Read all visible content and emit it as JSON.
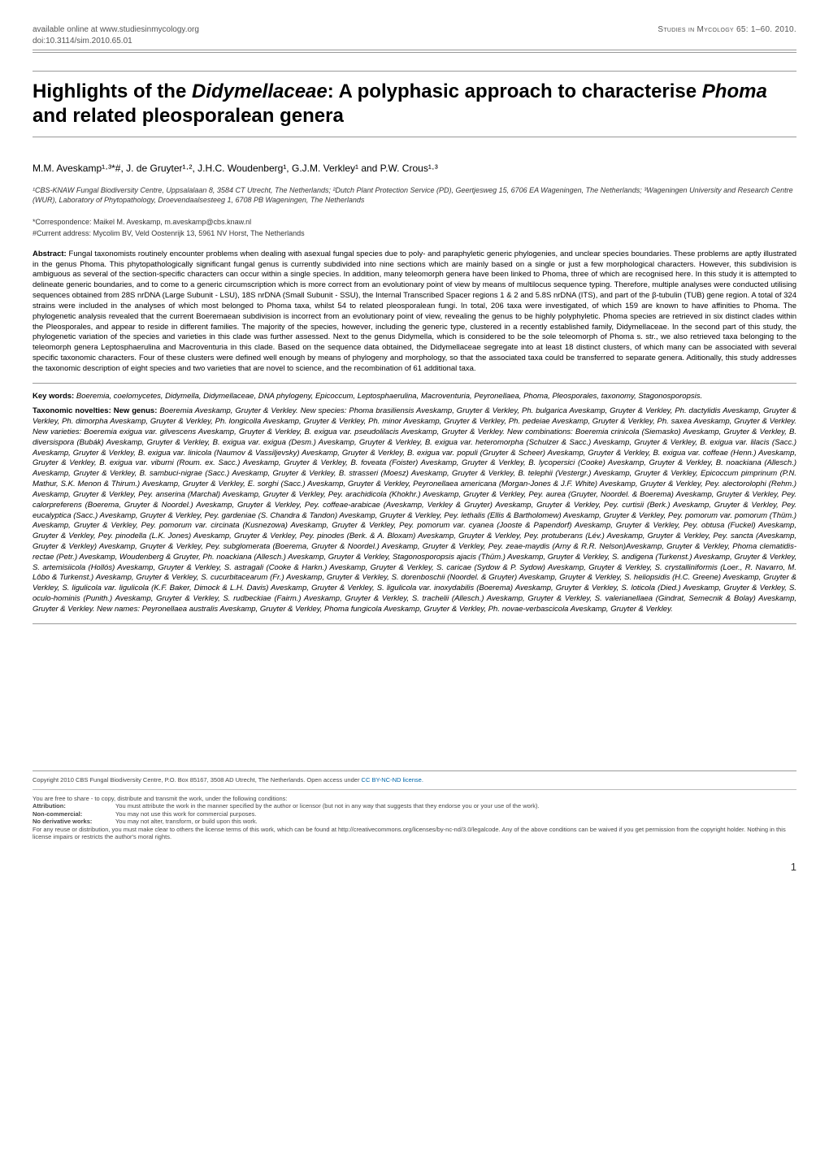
{
  "header": {
    "website": "available online at www.studiesinmycology.org",
    "doi": "doi:10.3114/sim.2010.65.01",
    "journal": "Studies in Mycology 65: 1–60. 2010."
  },
  "title": "Highlights of the Didymellaceae: A polyphasic approach to characterise Phoma and related pleosporalean genera",
  "authors": "M.M. Aveskamp¹·³*#, J. de Gruyter¹·², J.H.C. Woudenberg¹, G.J.M. Verkley¹ and P.W. Crous¹·³",
  "affiliations": "¹CBS-KNAW Fungal Biodiversity Centre, Uppsalalaan 8, 3584 CT Utrecht, The Netherlands; ²Dutch Plant Protection Service (PD), Geertjesweg 15, 6706 EA Wageningen, The Netherlands; ³Wageningen University and Research Centre (WUR), Laboratory of Phytopathology, Droevendaalsesteeg 1, 6708 PB Wageningen, The Netherlands",
  "correspondence": "*Correspondence: Maikel M. Aveskamp, m.aveskamp@cbs.knaw.nl",
  "current_address": "#Current address: Mycolim BV, Veld Oostenrijk 13, 5961 NV Horst, The Netherlands",
  "abstract_label": "Abstract:",
  "abstract": "Fungal taxonomists routinely encounter problems when dealing with asexual fungal species due to poly- and paraphyletic generic phylogenies, and unclear species boundaries. These problems are aptly illustrated in the genus Phoma. This phytopathologically significant fungal genus is currently subdivided into nine sections which are mainly based on a single or just a few morphological characters. However, this subdivision is ambiguous as several of the section-specific characters can occur within a single species. In addition, many teleomorph genera have been linked to Phoma, three of which are recognised here. In this study it is attempted to delineate generic boundaries, and to come to a generic circumscription which is more correct from an evolutionary point of view by means of multilocus sequence typing. Therefore, multiple analyses were conducted utilising sequences obtained from 28S nrDNA (Large Subunit - LSU), 18S nrDNA (Small Subunit - SSU), the Internal Transcribed Spacer regions 1 & 2 and 5.8S nrDNA (ITS), and part of the β-tubulin (TUB) gene region. A total of 324 strains were included in the analyses of which most belonged to Phoma taxa, whilst 54 to related pleosporalean fungi. In total, 206 taxa were investigated, of which 159 are known to have affinities to Phoma. The phylogenetic analysis revealed that the current Boeremaean subdivision is incorrect from an evolutionary point of view, revealing the genus to be highly polyphyletic. Phoma species are retrieved in six distinct clades within the Pleosporales, and appear to reside in different families. The majority of the species, however, including the generic type, clustered in a recently established family, Didymellaceae. In the second part of this study, the phylogenetic variation of the species and varieties in this clade was further assessed. Next to the genus Didymella, which is considered to be the sole teleomorph of Phoma s. str., we also retrieved taxa belonging to the teleomorph genera Leptosphaerulina and Macroventuria in this clade. Based on the sequence data obtained, the Didymellaceae segregate into at least 18 distinct clusters, of which many can be associated with several specific taxonomic characters. Four of these clusters were defined well enough by means of phylogeny and morphology, so that the associated taxa could be transferred to separate genera. Aditionally, this study addresses the taxonomic description of eight species and two varieties that are novel to science, and the recombination of 61 additional taxa.",
  "keywords_label": "Key words:",
  "keywords": "Boeremia, coelomycetes, Didymella, Didymellaceae, DNA phylogeny, Epicoccum, Leptosphaerulina, Macroventuria, Peyronellaea, Phoma, Pleosporales, taxonomy, Stagonosporopsis.",
  "novelties_label": "Taxonomic novelties: New genus:",
  "novelties": "Boeremia Aveskamp, Gruyter & Verkley. New species: Phoma brasiliensis Aveskamp, Gruyter & Verkley, Ph. bulgarica Aveskamp, Gruyter & Verkley, Ph. dactylidis Aveskamp, Gruyter & Verkley, Ph. dimorpha Aveskamp, Gruyter & Verkley, Ph. longicolla Aveskamp, Gruyter & Verkley, Ph. minor Aveskamp, Gruyter & Verkley, Ph. pedeiae Aveskamp, Gruyter & Verkley, Ph. saxea Aveskamp, Gruyter & Verkley. New varieties: Boeremia exigua var. gilvescens Aveskamp, Gruyter & Verkley, B. exigua var. pseudolilacis Aveskamp, Gruyter & Verkley. New combinations: Boeremia crinicola (Siemasko) Aveskamp, Gruyter & Verkley, B. diversispora (Bubák) Aveskamp, Gruyter & Verkley, B. exigua var. exigua (Desm.) Aveskamp, Gruyter & Verkley, B. exigua var. heteromorpha (Schulzer & Sacc.) Aveskamp, Gruyter & Verkley, B. exigua var. lilacis (Sacc.) Aveskamp, Gruyter & Verkley, B. exigua var. linicola (Naumov & Vassiljevsky) Aveskamp, Gruyter & Verkley, B. exigua var. populi (Gruyter & Scheer) Aveskamp, Gruyter & Verkley, B. exigua var. coffeae (Henn.) Aveskamp, Gruyter & Verkley, B. exigua var. viburni (Roum. ex. Sacc.) Aveskamp, Gruyter & Verkley, B. foveata (Foister) Aveskamp, Gruyter & Verkley, B. lycopersici (Cooke) Aveskamp, Gruyter & Verkley, B. noackiana (Allesch.) Aveskamp, Gruyter & Verkley, B. sambuci-nigrae (Sacc.) Aveskamp, Gruyter & Verkley, B. strasseri (Moesz) Aveskamp, Gruyter & Verkley, B. telephii (Vestergr.) Aveskamp, Gruyter & Verkley, Epicoccum pimprinum (P.N. Mathur, S.K. Menon & Thirum.) Aveskamp, Gruyter & Verkley, E. sorghi (Sacc.) Aveskamp, Gruyter & Verkley, Peyronellaea americana (Morgan-Jones & J.F. White) Aveskamp, Gruyter & Verkley, Pey. alectorolophi (Rehm.) Aveskamp, Gruyter & Verkley, Pey. anserina (Marchal) Aveskamp, Gruyter & Verkley, Pey. arachidicola (Khokhr.) Aveskamp, Gruyter & Verkley, Pey. aurea (Gruyter, Noordel. & Boerema) Aveskamp, Gruyter & Verkley, Pey. calorpreferens (Boerema, Gruyter & Noordel.) Aveskamp, Gruyter & Verkley, Pey. coffeae-arabicae (Aveskamp, Verkley & Gruyter) Aveskamp, Gruyter & Verkley, Pey. curtisii (Berk.) Aveskamp, Gruyter & Verkley, Pey. eucalyptica (Sacc.) Aveskamp, Gruyter & Verkley, Pey. gardeniae (S. Chandra & Tandon) Aveskamp, Gruyter & Verkley, Pey. lethalis (Ellis & Bartholomew) Aveskamp, Gruyter & Verkley, Pey. pomorum var. pomorum (Thüm.) Aveskamp, Gruyter & Verkley, Pey. pomorum var. circinata (Kusnezowa) Aveskamp, Gruyter & Verkley, Pey. pomorum var. cyanea (Jooste & Papendorf) Aveskamp, Gruyter & Verkley, Pey. obtusa (Fuckel) Aveskamp, Gruyter & Verkley, Pey. pinodella (L.K. Jones) Aveskamp, Gruyter & Verkley, Pey. pinodes (Berk. & A. Bloxam) Aveskamp, Gruyter & Verkley, Pey. protuberans (Lév.) Aveskamp, Gruyter & Verkley, Pey. sancta (Aveskamp, Gruyter & Verkley) Aveskamp, Gruyter & Verkley, Pey. subglomerata (Boerema, Gruyter & Noordel.) Aveskamp, Gruyter & Verkley, Pey. zeae-maydis (Arny & R.R. Nelson)Aveskamp, Gruyter & Verkley, Phoma clematidis-rectae (Petr.) Aveskamp, Woudenberg & Gruyter, Ph. noackiana (Allesch.) Aveskamp, Gruyter & Verkley, Stagonosporopsis ajacis (Thüm.) Aveskamp, Gruyter & Verkley, S. andigena (Turkenst.) Aveskamp, Gruyter & Verkley, S. artemisiicola (Hollós) Aveskamp, Gruyter & Verkley, S. astragali (Cooke & Harkn.) Aveskamp, Gruyter & Verkley, S. caricae (Sydow & P. Sydow) Aveskamp, Gruyter & Verkley, S. crystalliniformis (Loer., R. Navarro, M. Lôbo & Turkenst.) Aveskamp, Gruyter & Verkley, S. cucurbitacearum (Fr.) Aveskamp, Gruyter & Verkley, S. dorenboschii (Noordel. & Gruyter) Aveskamp, Gruyter & Verkley, S. heliopsidis (H.C. Greene) Aveskamp, Gruyter & Verkley, S. ligulicola var. ligulicola (K.F. Baker, Dimock & L.H. Davis) Aveskamp, Gruyter & Verkley, S. ligulicola var. inoxydabilis (Boerema) Aveskamp, Gruyter & Verkley, S. loticola (Died.) Aveskamp, Gruyter & Verkley, S. oculo-hominis (Punith.) Aveskamp, Gruyter & Verkley, S. rudbeckiae (Fairm.) Aveskamp, Gruyter & Verkley, S. trachelii (Allesch.) Aveskamp, Gruyter & Verkley, S. valerianellaea (Gindrat, Semecnik & Bolay) Aveskamp, Gruyter & Verkley. New names: Peyronellaea australis Aveskamp, Gruyter & Verkley, Phoma fungicola Aveskamp, Gruyter & Verkley, Ph. novae-verbascicola Aveskamp, Gruyter & Verkley.",
  "footer": {
    "copyright": "Copyright 2010 CBS Fungal Biodiversity Centre, P.O. Box 85167, 3508 AD Utrecht, The Netherlands. Open access under ",
    "license_link": "CC BY-NC-ND license.",
    "share_intro": "You are free to share - to copy, distribute and transmit the work, under the following conditions:",
    "attribution_label": "Attribution:",
    "attribution": "You must attribute the work in the manner specified by the author or licensor (but not in any way that suggests that they endorse you or your use of the work).",
    "noncommercial_label": "Non-commercial:",
    "noncommercial": "You may not use this work for commercial purposes.",
    "noderivative_label": "No derivative works:",
    "noderivative": "You may not alter, transform, or build upon this work.",
    "reuse": "For any reuse or distribution, you must make clear to others the license terms of this work, which can be found at http://creativecommons.org/licenses/by-nc-nd/3.0/legalcode. Any of the above conditions can be waived if you get permission from the copyright holder. Nothing in this license impairs or restricts the author's moral rights."
  },
  "page_number": "1"
}
